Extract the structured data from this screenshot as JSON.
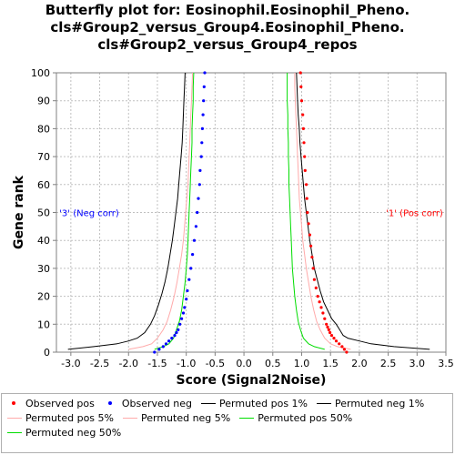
{
  "title_lines": [
    "Butterfly plot for: Eosinophil.Eosinophil_Pheno.",
    "cls#Group2_versus_Group4.Eosinophil_Pheno.",
    "cls#Group2_versus_Group4_repos"
  ],
  "chart_data": {
    "type": "scatter",
    "xlabel": "Score (Signal2Noise)",
    "ylabel": "Gene rank",
    "xlim": [
      -3.25,
      3.5
    ],
    "ylim": [
      0,
      100
    ],
    "xticks": [
      "-3.0",
      "-2.5",
      "-2.0",
      "-1.5",
      "-1.0",
      "-0.5",
      "0.0",
      "0.5",
      "1.0",
      "1.5",
      "2.0",
      "2.5",
      "3.0",
      "3.5"
    ],
    "yticks": [
      "0",
      "10",
      "20",
      "30",
      "40",
      "50",
      "60",
      "70",
      "80",
      "90",
      "100"
    ],
    "grid": true,
    "annotations": [
      {
        "text": "'3' (Neg corr)",
        "x": -3.2,
        "y": 50,
        "color": "#0000ff",
        "align": "left"
      },
      {
        "text": "'1' (Pos corr)",
        "x": 3.45,
        "y": 50,
        "color": "#ff0000",
        "align": "right"
      }
    ],
    "series": [
      {
        "name": "Observed pos",
        "kind": "points",
        "color": "#ff0000",
        "points": [
          [
            1.78,
            0
          ],
          [
            1.74,
            1
          ],
          [
            1.7,
            2
          ],
          [
            1.65,
            3
          ],
          [
            1.6,
            4
          ],
          [
            1.56,
            5
          ],
          [
            1.52,
            6
          ],
          [
            1.49,
            7
          ],
          [
            1.47,
            8
          ],
          [
            1.45,
            9
          ],
          [
            1.43,
            10
          ],
          [
            1.4,
            12
          ],
          [
            1.37,
            14
          ],
          [
            1.34,
            16
          ],
          [
            1.31,
            18
          ],
          [
            1.28,
            20
          ],
          [
            1.25,
            23
          ],
          [
            1.22,
            26
          ],
          [
            1.2,
            30
          ],
          [
            1.18,
            34
          ],
          [
            1.16,
            38
          ],
          [
            1.14,
            42
          ],
          [
            1.12,
            46
          ],
          [
            1.1,
            50
          ],
          [
            1.09,
            55
          ],
          [
            1.08,
            60
          ],
          [
            1.06,
            65
          ],
          [
            1.05,
            70
          ],
          [
            1.04,
            75
          ],
          [
            1.03,
            80
          ],
          [
            1.02,
            85
          ],
          [
            1.0,
            90
          ],
          [
            0.99,
            95
          ],
          [
            0.98,
            100
          ]
        ]
      },
      {
        "name": "Observed neg",
        "kind": "points",
        "color": "#0000ff",
        "points": [
          [
            -1.55,
            0
          ],
          [
            -1.47,
            1
          ],
          [
            -1.4,
            2
          ],
          [
            -1.35,
            3
          ],
          [
            -1.3,
            4
          ],
          [
            -1.25,
            5
          ],
          [
            -1.2,
            6
          ],
          [
            -1.17,
            7
          ],
          [
            -1.14,
            8
          ],
          [
            -1.11,
            10
          ],
          [
            -1.08,
            12
          ],
          [
            -1.05,
            14
          ],
          [
            -1.03,
            16
          ],
          [
            -1.0,
            19
          ],
          [
            -0.98,
            22
          ],
          [
            -0.95,
            26
          ],
          [
            -0.92,
            30
          ],
          [
            -0.89,
            35
          ],
          [
            -0.86,
            40
          ],
          [
            -0.83,
            45
          ],
          [
            -0.81,
            50
          ],
          [
            -0.79,
            55
          ],
          [
            -0.77,
            60
          ],
          [
            -0.76,
            65
          ],
          [
            -0.74,
            70
          ],
          [
            -0.73,
            75
          ],
          [
            -0.72,
            80
          ],
          [
            -0.71,
            85
          ],
          [
            -0.7,
            90
          ],
          [
            -0.69,
            95
          ],
          [
            -0.68,
            100
          ]
        ]
      },
      {
        "name": "Permuted pos 1%",
        "kind": "line",
        "color": "#000000",
        "points": [
          [
            3.22,
            1
          ],
          [
            2.6,
            2
          ],
          [
            2.2,
            3
          ],
          [
            2.0,
            4
          ],
          [
            1.8,
            5
          ],
          [
            1.72,
            6
          ],
          [
            1.66,
            8
          ],
          [
            1.6,
            10
          ],
          [
            1.52,
            12
          ],
          [
            1.45,
            15
          ],
          [
            1.38,
            18
          ],
          [
            1.32,
            22
          ],
          [
            1.27,
            26
          ],
          [
            1.22,
            30
          ],
          [
            1.18,
            35
          ],
          [
            1.14,
            40
          ],
          [
            1.11,
            45
          ],
          [
            1.08,
            50
          ],
          [
            1.05,
            55
          ],
          [
            1.03,
            60
          ],
          [
            1.01,
            65
          ],
          [
            0.99,
            70
          ],
          [
            0.97,
            75
          ],
          [
            0.96,
            80
          ],
          [
            0.94,
            85
          ],
          [
            0.93,
            90
          ],
          [
            0.92,
            95
          ],
          [
            0.91,
            100
          ]
        ]
      },
      {
        "name": "Permuted neg 1%",
        "kind": "line",
        "color": "#000000",
        "points": [
          [
            -3.05,
            1
          ],
          [
            -2.6,
            2
          ],
          [
            -2.2,
            3
          ],
          [
            -2.0,
            4
          ],
          [
            -1.85,
            5
          ],
          [
            -1.72,
            7
          ],
          [
            -1.62,
            10
          ],
          [
            -1.55,
            13
          ],
          [
            -1.48,
            17
          ],
          [
            -1.42,
            21
          ],
          [
            -1.37,
            25
          ],
          [
            -1.32,
            30
          ],
          [
            -1.28,
            35
          ],
          [
            -1.24,
            40
          ],
          [
            -1.21,
            45
          ],
          [
            -1.18,
            50
          ],
          [
            -1.15,
            55
          ],
          [
            -1.13,
            60
          ],
          [
            -1.11,
            65
          ],
          [
            -1.09,
            70
          ],
          [
            -1.07,
            75
          ],
          [
            -1.06,
            80
          ],
          [
            -1.05,
            85
          ],
          [
            -1.04,
            90
          ],
          [
            -1.03,
            95
          ],
          [
            -1.02,
            100
          ]
        ]
      },
      {
        "name": "Permuted pos 5%",
        "kind": "line",
        "color": "#ffaaaa",
        "points": [
          [
            1.85,
            1
          ],
          [
            1.62,
            2
          ],
          [
            1.5,
            3
          ],
          [
            1.4,
            5
          ],
          [
            1.32,
            8
          ],
          [
            1.26,
            11
          ],
          [
            1.21,
            15
          ],
          [
            1.16,
            20
          ],
          [
            1.12,
            25
          ],
          [
            1.08,
            30
          ],
          [
            1.05,
            35
          ],
          [
            1.02,
            40
          ],
          [
            1.0,
            45
          ],
          [
            0.98,
            50
          ],
          [
            0.96,
            55
          ],
          [
            0.95,
            60
          ],
          [
            0.94,
            65
          ],
          [
            0.93,
            70
          ],
          [
            0.92,
            75
          ],
          [
            0.91,
            80
          ],
          [
            0.9,
            85
          ],
          [
            0.89,
            90
          ],
          [
            0.88,
            95
          ],
          [
            0.88,
            100
          ]
        ]
      },
      {
        "name": "Permuted neg 5%",
        "kind": "line",
        "color": "#ffaaaa",
        "points": [
          [
            -2.0,
            1
          ],
          [
            -1.75,
            2
          ],
          [
            -1.6,
            3
          ],
          [
            -1.5,
            5
          ],
          [
            -1.4,
            8
          ],
          [
            -1.33,
            11
          ],
          [
            -1.27,
            15
          ],
          [
            -1.21,
            20
          ],
          [
            -1.16,
            25
          ],
          [
            -1.12,
            30
          ],
          [
            -1.08,
            35
          ],
          [
            -1.05,
            40
          ],
          [
            -1.03,
            45
          ],
          [
            -1.01,
            50
          ],
          [
            -0.99,
            55
          ],
          [
            -0.97,
            60
          ],
          [
            -0.96,
            65
          ],
          [
            -0.95,
            70
          ],
          [
            -0.94,
            75
          ],
          [
            -0.93,
            80
          ],
          [
            -0.92,
            85
          ],
          [
            -0.91,
            90
          ],
          [
            -0.9,
            95
          ],
          [
            -0.89,
            100
          ]
        ]
      },
      {
        "name": "Permuted pos 50%",
        "kind": "line",
        "color": "#00dd00",
        "points": [
          [
            1.4,
            1
          ],
          [
            1.22,
            2
          ],
          [
            1.12,
            3
          ],
          [
            1.03,
            5
          ],
          [
            0.98,
            8
          ],
          [
            0.94,
            11
          ],
          [
            0.91,
            15
          ],
          [
            0.88,
            20
          ],
          [
            0.86,
            25
          ],
          [
            0.84,
            30
          ],
          [
            0.83,
            35
          ],
          [
            0.82,
            40
          ],
          [
            0.81,
            45
          ],
          [
            0.8,
            50
          ],
          [
            0.79,
            55
          ],
          [
            0.78,
            60
          ],
          [
            0.78,
            65
          ],
          [
            0.77,
            70
          ],
          [
            0.77,
            75
          ],
          [
            0.76,
            80
          ],
          [
            0.76,
            85
          ],
          [
            0.75,
            90
          ],
          [
            0.75,
            95
          ],
          [
            0.75,
            100
          ]
        ]
      },
      {
        "name": "Permuted neg 50%",
        "kind": "line",
        "color": "#00dd00",
        "points": [
          [
            -1.55,
            1
          ],
          [
            -1.4,
            2
          ],
          [
            -1.3,
            3
          ],
          [
            -1.22,
            5
          ],
          [
            -1.17,
            8
          ],
          [
            -1.12,
            11
          ],
          [
            -1.08,
            15
          ],
          [
            -1.05,
            20
          ],
          [
            -1.02,
            25
          ],
          [
            -1.0,
            30
          ],
          [
            -0.98,
            35
          ],
          [
            -0.97,
            40
          ],
          [
            -0.96,
            45
          ],
          [
            -0.95,
            50
          ],
          [
            -0.94,
            55
          ],
          [
            -0.93,
            60
          ],
          [
            -0.92,
            65
          ],
          [
            -0.91,
            70
          ],
          [
            -0.9,
            75
          ],
          [
            -0.9,
            80
          ],
          [
            -0.89,
            85
          ],
          [
            -0.88,
            90
          ],
          [
            -0.88,
            95
          ],
          [
            -0.87,
            100
          ]
        ]
      }
    ]
  },
  "legend": [
    {
      "label": "Observed pos",
      "kind": "dot",
      "color": "#ff0000"
    },
    {
      "label": "Observed neg",
      "kind": "dot",
      "color": "#0000ff"
    },
    {
      "label": "Permuted pos 1%",
      "kind": "line",
      "color": "#000000"
    },
    {
      "label": "Permuted neg 1%",
      "kind": "line",
      "color": "#000000"
    },
    {
      "label": "Permuted pos 5%",
      "kind": "line",
      "color": "#ffaaaa"
    },
    {
      "label": "Permuted neg 5%",
      "kind": "line",
      "color": "#ffaaaa"
    },
    {
      "label": "Permuted pos 50%",
      "kind": "line",
      "color": "#00dd00"
    },
    {
      "label": "Permuted neg 50%",
      "kind": "line",
      "color": "#00dd00"
    }
  ]
}
